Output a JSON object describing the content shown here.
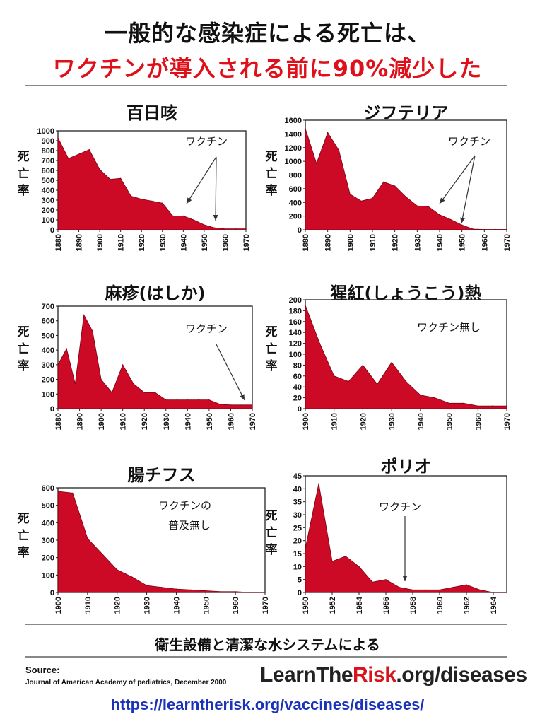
{
  "header": {
    "line1": "一般的な感染症による死亡は、",
    "line2": "ワクチンが導入される前に90%減少した"
  },
  "colors": {
    "fill": "#cc0a26",
    "title_red": "#e0101a",
    "url_blue": "#1a33b8",
    "brand_red": "#d7141a"
  },
  "chart_data": [
    {
      "type": "area",
      "title": "百日咳",
      "ylabel": "死亡率",
      "x": [
        1880,
        1885,
        1895,
        1900,
        1905,
        1910,
        1915,
        1920,
        1925,
        1930,
        1935,
        1940,
        1945,
        1950,
        1955,
        1960,
        1965,
        1970
      ],
      "values": [
        930,
        720,
        810,
        610,
        510,
        520,
        340,
        310,
        290,
        270,
        140,
        140,
        100,
        50,
        20,
        10,
        10,
        10
      ],
      "xlim": [
        1880,
        1970
      ],
      "ylim": [
        0,
        1000
      ],
      "xticks": [
        1880,
        1890,
        1900,
        1910,
        1920,
        1930,
        1940,
        1950,
        1960,
        1970
      ],
      "yticks": [
        0,
        100,
        200,
        300,
        400,
        500,
        600,
        700,
        800,
        900,
        1000
      ],
      "annotation": "ワクチン"
    },
    {
      "type": "area",
      "title": "ジフテリア",
      "ylabel": "死亡率",
      "x": [
        1880,
        1885,
        1890,
        1895,
        1900,
        1905,
        1910,
        1915,
        1920,
        1925,
        1930,
        1935,
        1940,
        1945,
        1950,
        1955,
        1960,
        1965,
        1970
      ],
      "values": [
        1480,
        970,
        1420,
        1160,
        520,
        420,
        460,
        700,
        640,
        480,
        350,
        340,
        220,
        150,
        70,
        10,
        5,
        5,
        5
      ],
      "xlim": [
        1880,
        1970
      ],
      "ylim": [
        0,
        1600
      ],
      "xticks": [
        1880,
        1890,
        1900,
        1910,
        1920,
        1930,
        1940,
        1950,
        1960,
        1970
      ],
      "yticks": [
        0,
        200,
        400,
        600,
        800,
        1000,
        1200,
        1400,
        1600
      ],
      "annotation": "ワクチン"
    },
    {
      "type": "area",
      "title": "麻疹(はしか)",
      "ylabel": "死亡率",
      "x": [
        1880,
        1884,
        1888,
        1892,
        1896,
        1900,
        1905,
        1910,
        1915,
        1920,
        1925,
        1930,
        1935,
        1940,
        1945,
        1950,
        1955,
        1960,
        1965,
        1970
      ],
      "values": [
        300,
        410,
        170,
        640,
        530,
        200,
        110,
        300,
        170,
        110,
        110,
        60,
        60,
        60,
        60,
        60,
        30,
        25,
        25,
        25
      ],
      "xlim": [
        1880,
        1970
      ],
      "ylim": [
        0,
        700
      ],
      "xticks": [
        1880,
        1890,
        1900,
        1910,
        1920,
        1930,
        1940,
        1950,
        1960,
        1970
      ],
      "yticks": [
        0,
        100,
        200,
        300,
        400,
        500,
        600,
        700
      ],
      "annotation": "ワクチン"
    },
    {
      "type": "area",
      "title": "猩紅(しょうこう)熱",
      "ylabel": "死亡率",
      "x": [
        1900,
        1905,
        1910,
        1915,
        1920,
        1925,
        1930,
        1935,
        1940,
        1945,
        1950,
        1955,
        1960,
        1965,
        1970
      ],
      "values": [
        190,
        120,
        60,
        50,
        80,
        45,
        85,
        50,
        25,
        20,
        10,
        10,
        5,
        5,
        5
      ],
      "xlim": [
        1900,
        1970
      ],
      "ylim": [
        0,
        200
      ],
      "xticks": [
        1900,
        1910,
        1920,
        1930,
        1940,
        1950,
        1960,
        1970
      ],
      "yticks": [
        0,
        20,
        40,
        60,
        80,
        100,
        120,
        140,
        160,
        180,
        200
      ],
      "annotation": "ワクチン無し"
    },
    {
      "type": "area",
      "title": "腸チフス",
      "ylabel": "死亡率",
      "x": [
        1900,
        1905,
        1910,
        1915,
        1920,
        1925,
        1930,
        1935,
        1940,
        1945,
        1950,
        1955,
        1960,
        1965,
        1970
      ],
      "values": [
        580,
        570,
        310,
        220,
        130,
        90,
        40,
        30,
        20,
        15,
        10,
        5,
        5,
        0,
        0
      ],
      "xlim": [
        1900,
        1970
      ],
      "ylim": [
        0,
        600
      ],
      "xticks": [
        1900,
        1910,
        1920,
        1930,
        1940,
        1950,
        1960,
        1970
      ],
      "yticks": [
        0,
        100,
        200,
        300,
        400,
        500,
        600
      ],
      "annotation_lines": [
        "ワクチンの",
        "普及無し"
      ]
    },
    {
      "type": "area",
      "title": "ポリオ",
      "ylabel": "死亡率",
      "x": [
        1950,
        1951,
        1952,
        1953,
        1954,
        1955,
        1956,
        1957,
        1958,
        1959,
        1960,
        1961,
        1962,
        1963,
        1964,
        1965
      ],
      "values": [
        17,
        42,
        12,
        14,
        10,
        4,
        5,
        2,
        1,
        1,
        1,
        2,
        3,
        1,
        0,
        0
      ],
      "xlim": [
        1950,
        1965
      ],
      "ylim": [
        0,
        45
      ],
      "xticks": [
        1950,
        1952,
        1954,
        1956,
        1958,
        1960,
        1962,
        1964
      ],
      "yticks": [
        0,
        5,
        10,
        15,
        20,
        25,
        30,
        35,
        40,
        45
      ],
      "annotation": "ワクチン"
    }
  ],
  "footer": {
    "note": "衛生設備と清潔な水システムによる",
    "source_label": "Source:",
    "source_text": "Journal of American Academy of pediatrics, December 2000",
    "brand_main": "LearnThe",
    "brand_red": "Risk",
    "brand_tail": ".org/diseases",
    "url": "https://learntherisk.org/vaccines/diseases/"
  }
}
